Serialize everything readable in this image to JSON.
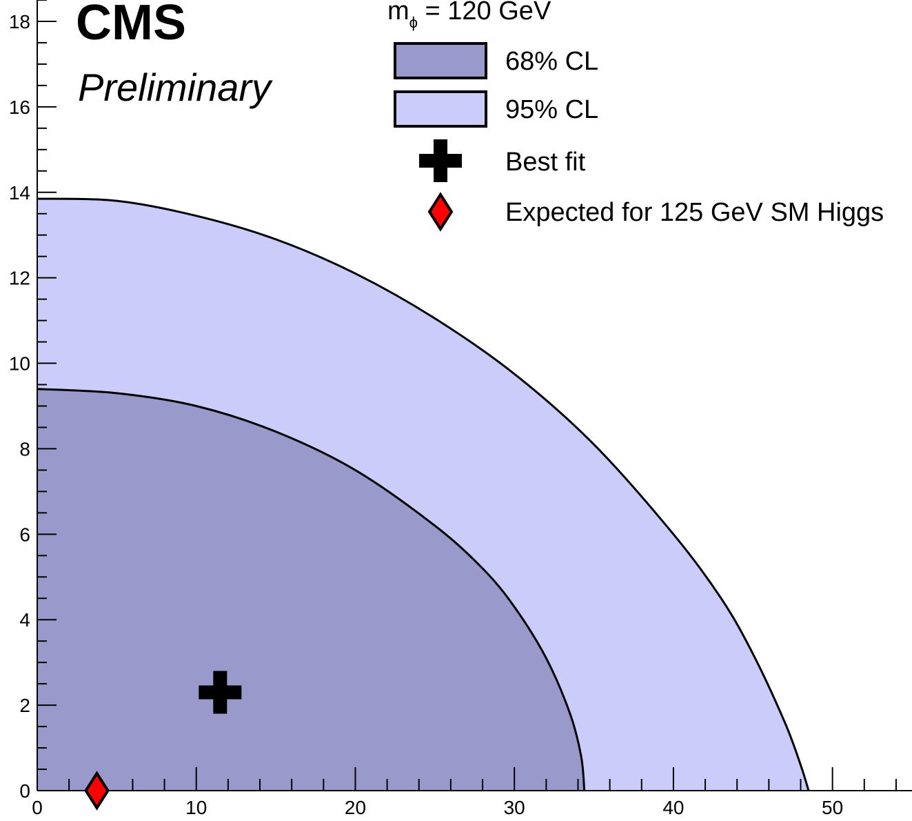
{
  "header": {
    "experiment": "CMS",
    "status": "Preliminary"
  },
  "legend": {
    "title_main": "m",
    "title_sub": "ϕ",
    "title_rest": " = 120 GeV",
    "items": [
      {
        "label": "68% CL",
        "marker": "filled-box",
        "color": "#9999cc"
      },
      {
        "label": "95% CL",
        "marker": "filled-box",
        "color": "#ccccfa"
      },
      {
        "label": "Best fit",
        "marker": "cross-icon",
        "color": "#000000"
      },
      {
        "label": "Expected for 125 GeV SM Higgs",
        "marker": "diamond-icon",
        "color": "#ff0000"
      }
    ]
  },
  "chart_data": {
    "type": "area",
    "title": "",
    "xlabel": "",
    "ylabel": "",
    "xlim": [
      0,
      55
    ],
    "ylim": [
      0,
      18.5
    ],
    "x_ticks": [
      0,
      10,
      20,
      30,
      40,
      50
    ],
    "y_ticks": [
      0,
      2,
      4,
      6,
      8,
      10,
      12,
      14,
      16,
      18
    ],
    "x_minor_step": 2,
    "y_minor_step": 0.5,
    "grid": false,
    "series": [
      {
        "name": "95% CL",
        "color": "#ccccfa",
        "points": [
          [
            0,
            13.85
          ],
          [
            5,
            13.8
          ],
          [
            10,
            13.45
          ],
          [
            15,
            12.9
          ],
          [
            20,
            12.1
          ],
          [
            25,
            11.05
          ],
          [
            30,
            9.75
          ],
          [
            35,
            8.1
          ],
          [
            40,
            6.0
          ],
          [
            43,
            4.5
          ],
          [
            45,
            3.2
          ],
          [
            47,
            1.6
          ],
          [
            48,
            0.6
          ],
          [
            48.5,
            0
          ]
        ]
      },
      {
        "name": "68% CL",
        "color": "#9999cc",
        "points": [
          [
            0,
            9.4
          ],
          [
            5,
            9.3
          ],
          [
            10,
            9.0
          ],
          [
            15,
            8.4
          ],
          [
            20,
            7.5
          ],
          [
            25,
            6.2
          ],
          [
            28,
            5.2
          ],
          [
            30,
            4.3
          ],
          [
            32,
            3.1
          ],
          [
            33.5,
            1.8
          ],
          [
            34.2,
            0.8
          ],
          [
            34.4,
            0
          ]
        ]
      }
    ],
    "points": [
      {
        "name": "Best fit",
        "x": 11.5,
        "y": 2.3,
        "marker": "cross"
      },
      {
        "name": "Expected for 125 GeV SM Higgs",
        "x": 3.75,
        "y": 0.0,
        "marker": "diamond"
      }
    ]
  }
}
